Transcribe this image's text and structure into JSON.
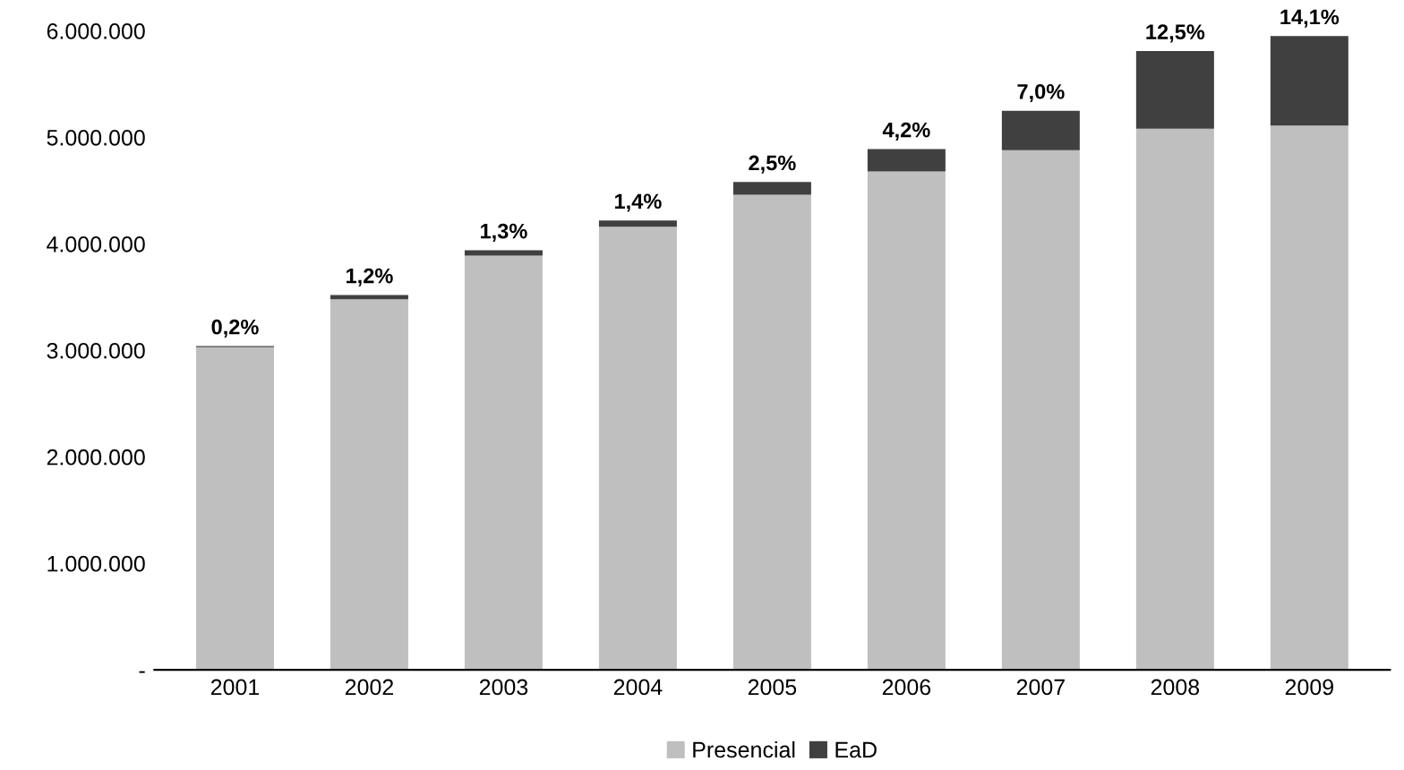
{
  "chart_data": {
    "type": "bar",
    "stacked": true,
    "categories": [
      "2001",
      "2002",
      "2003",
      "2004",
      "2005",
      "2006",
      "2007",
      "2008",
      "2009"
    ],
    "series": [
      {
        "name": "Presencial",
        "color": "#bfbfbf",
        "values": [
          3030000,
          3480000,
          3890000,
          4160000,
          4460000,
          4680000,
          4880000,
          5080000,
          5110000
        ]
      },
      {
        "name": "EaD",
        "color": "#404040",
        "values": [
          10000,
          40000,
          50000,
          60000,
          120000,
          210000,
          370000,
          730000,
          840000
        ]
      }
    ],
    "annotations": [
      {
        "text": "0,2%",
        "x": "2001",
        "y": 3040000
      },
      {
        "text": "1,2%",
        "x": "2002",
        "y": 3520000
      },
      {
        "text": "1,3%",
        "x": "2003",
        "y": 3940000
      },
      {
        "text": "1,4%",
        "x": "2004",
        "y": 4220000
      },
      {
        "text": "2,5%",
        "x": "2005",
        "y": 4580000
      },
      {
        "text": "4,2%",
        "x": "2006",
        "y": 4890000
      },
      {
        "text": "7,0%",
        "x": "2007",
        "y": 5250000
      },
      {
        "text": "12,5%",
        "x": "2008",
        "y": 5810000
      },
      {
        "text": "14,1%",
        "x": "2009",
        "y": 5950000
      }
    ],
    "ylim": [
      0,
      6000000
    ],
    "yticks": [
      {
        "value": 0,
        "label": "-"
      },
      {
        "value": 1000000,
        "label": "1.000.000"
      },
      {
        "value": 2000000,
        "label": "2.000.000"
      },
      {
        "value": 3000000,
        "label": "3.000.000"
      },
      {
        "value": 4000000,
        "label": "4.000.000"
      },
      {
        "value": 5000000,
        "label": "5.000.000"
      },
      {
        "value": 6000000,
        "label": "6.000.000"
      }
    ],
    "grid": false,
    "legend": "bottom"
  }
}
